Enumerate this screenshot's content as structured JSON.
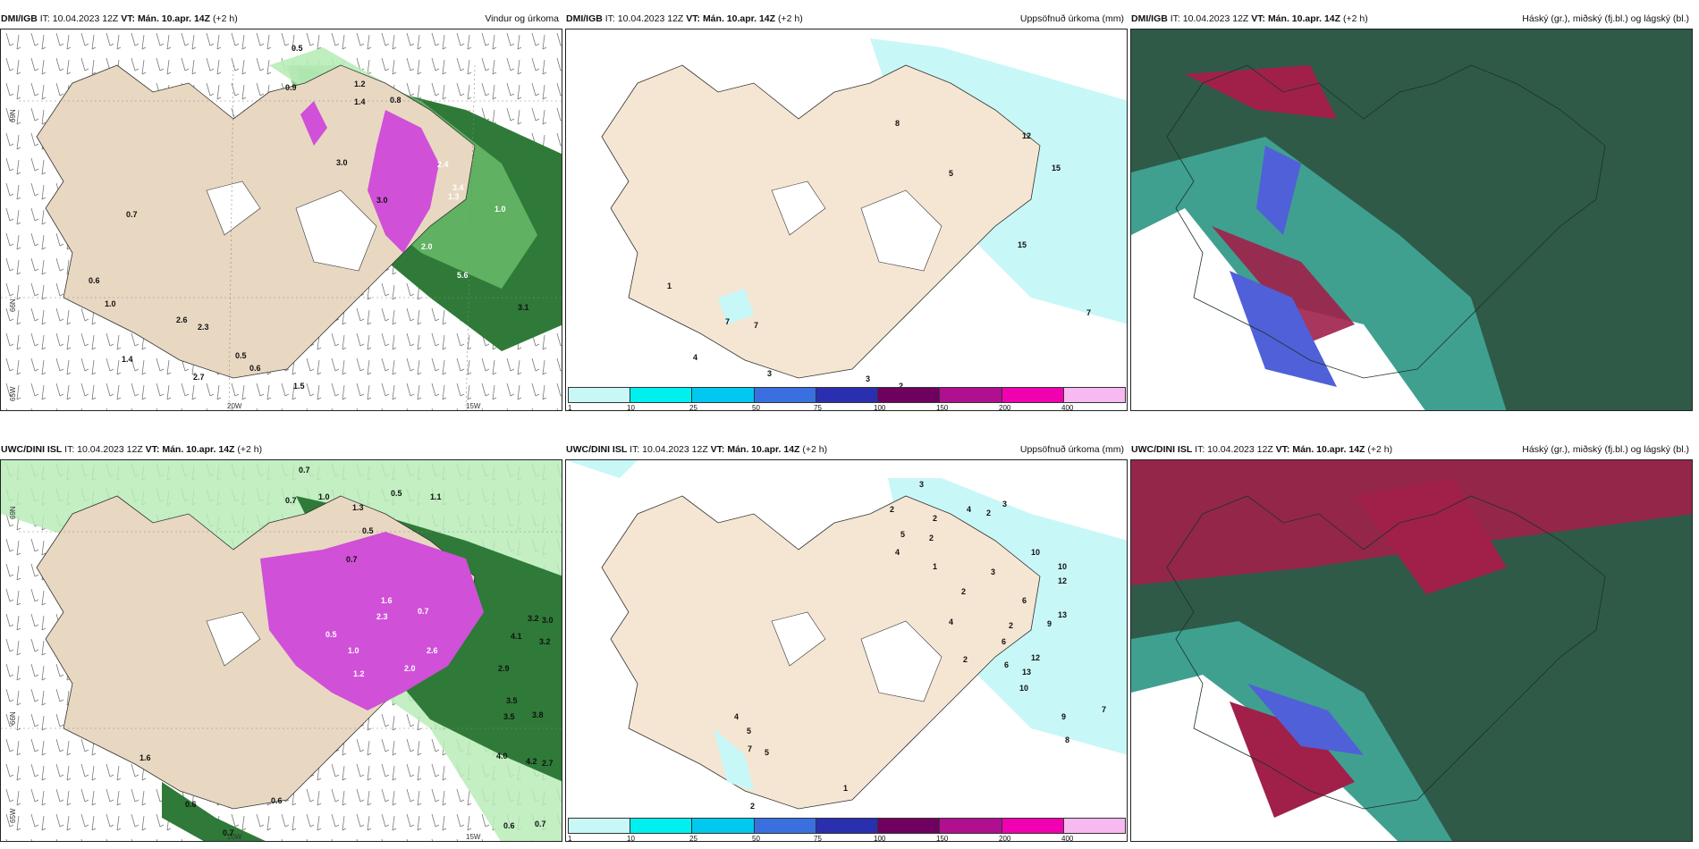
{
  "panels": [
    {
      "model": "DMI/IGB",
      "it": "IT: 10.04.2023 12Z",
      "vt_label": "VT:",
      "vt": "Mán. 10.apr. 14Z",
      "lead": "(+2 h)",
      "title": "Vindur og úrkoma",
      "lat_labels": [
        "69N",
        "66N",
        "65W"
      ],
      "lon_labels": [
        "20W",
        "15W"
      ],
      "values": [
        "0.5",
        "0.9",
        "1.2",
        "0.8",
        "3.0",
        "3.0",
        "0.7",
        "0.6",
        "1.0",
        "2.6",
        "2.3",
        "0.5",
        "0.6",
        "1.4",
        "2.7",
        "1.5",
        "3.1",
        "5.6",
        "1.4",
        "2.4",
        "1.3",
        "1.0",
        "2.0",
        "3.4"
      ]
    },
    {
      "model": "DMI/IGB",
      "it": "IT: 10.04.2023 12Z",
      "vt_label": "VT:",
      "vt": "Mán. 10.apr. 14Z",
      "lead": "(+2 h)",
      "title": "Uppsöfnuð úrkoma (mm)",
      "values": [
        "8",
        "12",
        "5",
        "15",
        "15",
        "1",
        "7",
        "7",
        "4",
        "3",
        "3",
        "2",
        "7"
      ],
      "legend": [
        "1",
        "10",
        "25",
        "50",
        "75",
        "100",
        "150",
        "200",
        "400"
      ]
    },
    {
      "model": "DMI/IGB",
      "it": "IT: 10.04.2023 12Z",
      "vt_label": "VT:",
      "vt": "Mán. 10.apr. 14Z",
      "lead": "(+2 h)",
      "title": "Háský (gr.), miðský (fj.bl.) og lágský (bl.)"
    },
    {
      "model": "UWC/DINI ISL",
      "it": "IT: 10.04.2023 12Z",
      "vt_label": "VT:",
      "vt": "Mán. 10.apr. 14Z",
      "lead": "(+2 h)",
      "title": "",
      "lat_labels": [
        "69N",
        "66N",
        "65W"
      ],
      "lon_labels": [
        "20W",
        "15W"
      ],
      "values": [
        "0.7",
        "1.0",
        "0.7",
        "0.5",
        "1.1",
        "0.5",
        "1.3",
        "0.7",
        "0.5",
        "2.3",
        "1.6",
        "0.7",
        "1.0",
        "1.2",
        "2.0",
        "2.6",
        "3.5",
        "2.9",
        "3.2",
        "3.0",
        "3.2",
        "3.5",
        "3.8",
        "4.0",
        "4.2",
        "2.7",
        "0.6",
        "0.6",
        "0.7",
        "1.6",
        "0.6",
        "0.7",
        "4.1"
      ]
    },
    {
      "model": "UWC/DINI ISL",
      "it": "IT: 10.04.2023 12Z",
      "vt_label": "VT:",
      "vt": "Mán. 10.apr. 14Z",
      "lead": "(+2 h)",
      "title": "Uppsöfnuð úrkoma (mm)",
      "values": [
        "3",
        "2",
        "2",
        "4",
        "2",
        "3",
        "5",
        "4",
        "2",
        "10",
        "10",
        "12",
        "13",
        "6",
        "6",
        "9",
        "4",
        "2",
        "6",
        "12",
        "13",
        "10",
        "7",
        "9",
        "8",
        "4",
        "5",
        "7",
        "5",
        "2",
        "1",
        "2",
        "2",
        "3",
        "1"
      ],
      "legend": [
        "1",
        "10",
        "25",
        "50",
        "75",
        "100",
        "150",
        "200",
        "400"
      ]
    },
    {
      "model": "UWC/DINI ISL",
      "it": "IT: 10.04.2023 12Z",
      "vt_label": "VT:",
      "vt": "Mán. 10.apr. 14Z",
      "lead": "(+2 h)",
      "title": "Háský (gr.), miðský (fj.bl.) og lágský (bl.)"
    }
  ],
  "legend_colors": [
    "#c8f7f7",
    "#00f0f0",
    "#00c8ef",
    "#3a6fe0",
    "#2a2fb0",
    "#70005f",
    "#b0108f",
    "#f000b0",
    "#f8b8f0"
  ],
  "colors": {
    "land": "#f5e6d3",
    "land_wind": "#e8d8c2",
    "sea_precip": "#a8f3f5",
    "green_dark": "#0e5a1a",
    "green_light": "#b8ecb8",
    "magenta": "#d050d8",
    "cloud_dark": "#2f5a48",
    "cloud_teal": "#3fa090",
    "cloud_red": "#a0204a",
    "cloud_blue": "#5060d8"
  }
}
